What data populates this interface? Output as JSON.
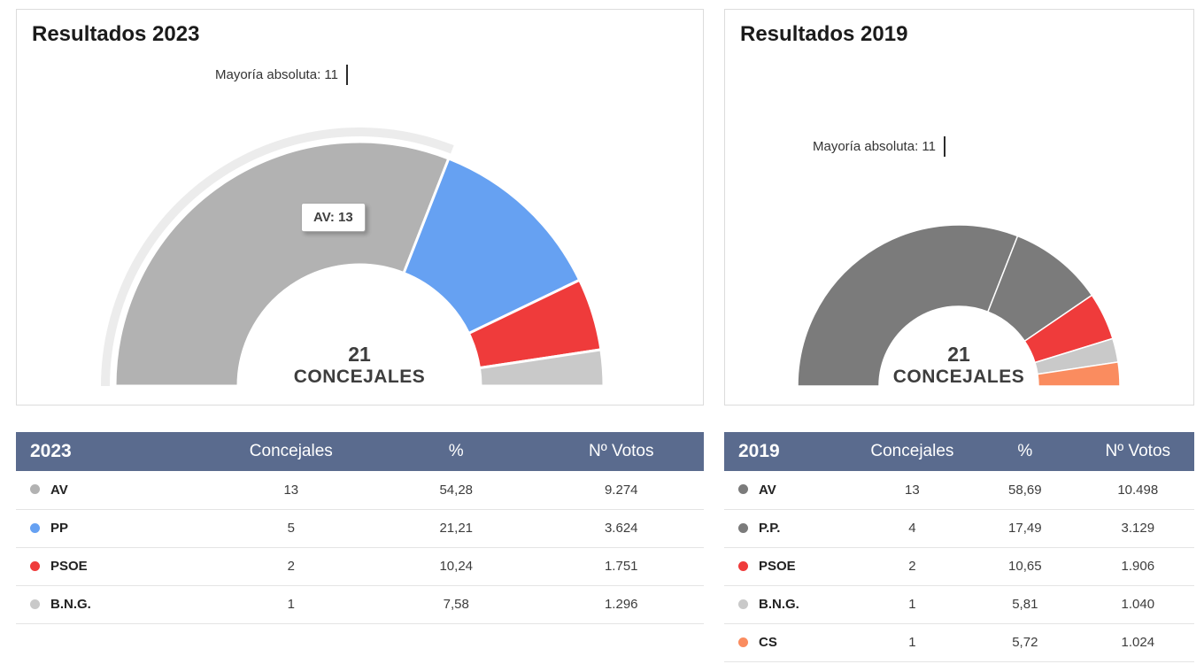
{
  "colors": {
    "table_header_bg": "#5a6b8e",
    "halo": "#ececec",
    "background": "#ffffff"
  },
  "tables": [
    {
      "year": "2023",
      "columns": [
        "Concejales",
        "%",
        "Nº Votos"
      ]
    },
    {
      "year": "2019",
      "columns": [
        "Concejales",
        "%",
        "Nº Votos"
      ]
    }
  ],
  "chart_data": [
    {
      "type": "half-donut",
      "title": "Resultados 2023",
      "majority_label": "Mayoría absoluta: 11",
      "majority": 11,
      "total_seats": 21,
      "center_value": "21",
      "center_label": "CONCEJALES",
      "tooltip": "AV: 13",
      "highlighted_index": 0,
      "series": [
        {
          "name": "AV",
          "seats": 13,
          "percent": "54,28",
          "votes": "9.274",
          "color": "#b2b2b2"
        },
        {
          "name": "PP",
          "seats": 5,
          "percent": "21,21",
          "votes": "3.624",
          "color": "#66a1f2"
        },
        {
          "name": "PSOE",
          "seats": 2,
          "percent": "10,24",
          "votes": "1.751",
          "color": "#ef3b3b"
        },
        {
          "name": "B.N.G.",
          "seats": 1,
          "percent": "7,58",
          "votes": "1.296",
          "color": "#c9c9c9"
        }
      ]
    },
    {
      "type": "half-donut",
      "title": "Resultados 2019",
      "majority_label": "Mayoría absoluta: 11",
      "majority": 11,
      "total_seats": 21,
      "center_value": "21",
      "center_label": "CONCEJALES",
      "series": [
        {
          "name": "AV",
          "seats": 13,
          "percent": "58,69",
          "votes": "10.498",
          "color": "#7b7b7b"
        },
        {
          "name": "P.P.",
          "seats": 4,
          "percent": "17,49",
          "votes": "3.129",
          "color": "#7b7b7b"
        },
        {
          "name": "PSOE",
          "seats": 2,
          "percent": "10,65",
          "votes": "1.906",
          "color": "#ef3b3b"
        },
        {
          "name": "B.N.G.",
          "seats": 1,
          "percent": "5,81",
          "votes": "1.040",
          "color": "#c9c9c9"
        },
        {
          "name": "CS",
          "seats": 1,
          "percent": "5,72",
          "votes": "1.024",
          "color": "#fa8c5f"
        }
      ]
    }
  ]
}
